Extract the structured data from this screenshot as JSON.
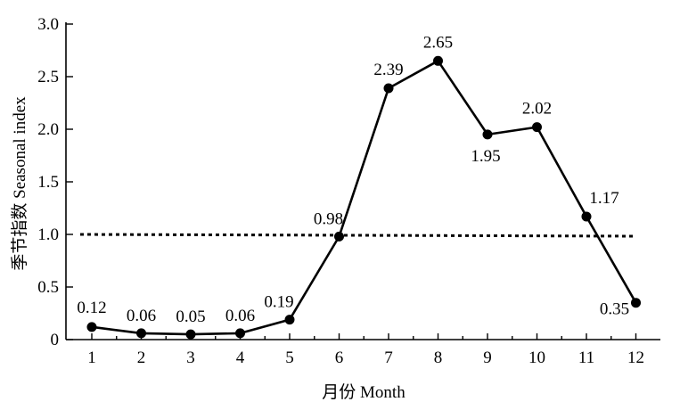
{
  "chart_data": {
    "type": "line",
    "title": "",
    "xlabel": "月份  Month",
    "ylabel": "季节指数  Seasonal  index",
    "x": [
      1,
      2,
      3,
      4,
      5,
      6,
      7,
      8,
      9,
      10,
      11,
      12
    ],
    "x_tick_labels": [
      "1",
      "2",
      "3",
      "4",
      "5",
      "6",
      "7",
      "8",
      "9",
      "10",
      "11",
      "12"
    ],
    "xlim": [
      0.5,
      12.5
    ],
    "ylim": [
      0,
      3.0
    ],
    "y_ticks": [
      0,
      0.5,
      1.0,
      1.5,
      2.0,
      2.5,
      3.0
    ],
    "y_tick_labels": [
      "0",
      "0.5",
      "1.0",
      "1.5",
      "2.0",
      "2.5",
      "3.0"
    ],
    "series": [
      {
        "values": [
          0.12,
          0.06,
          0.05,
          0.06,
          0.19,
          0.98,
          2.39,
          2.65,
          1.95,
          2.02,
          1.17,
          0.35
        ],
        "data_labels": [
          "0.12",
          "0.06",
          "0.05",
          "0.06",
          "0.19",
          "0.98",
          "2.39",
          "2.65",
          "1.95",
          "2.02",
          "1.17",
          "0.35"
        ],
        "marker": "circle",
        "color": "#000000"
      }
    ],
    "reference_line": {
      "y": 1.0,
      "style": "dotted",
      "color": "#000000"
    },
    "grid": false,
    "legend": "none"
  }
}
